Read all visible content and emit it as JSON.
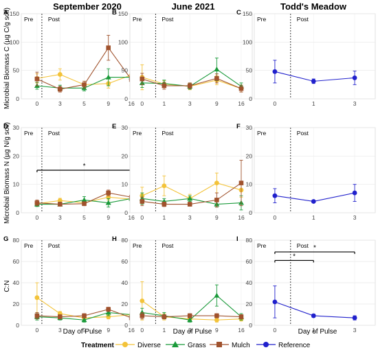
{
  "figure": {
    "x_axis_label": "Day of Pulse",
    "legend_title": "Treatment",
    "legend_items": [
      "Diverse",
      "Grass",
      "Mulch",
      "Reference"
    ],
    "colors": {
      "Diverse": "#F3C33A",
      "Grass": "#1A9A3A",
      "Mulch": "#A0522D",
      "Reference": "#2020CC"
    },
    "marker_shapes": {
      "Diverse": "circle",
      "Grass": "triangle",
      "Mulch": "square",
      "Reference": "circle"
    },
    "pre_label": "Pre",
    "post_label": "Post",
    "column_titles": [
      "September 2020",
      "June 2021",
      "Todd's Meadow"
    ]
  },
  "chart_data": [
    {
      "panel": "A",
      "type": "line",
      "title": "September 2020",
      "ylabel": "Microbial Biomass C (µg C/g soil)",
      "x": [
        0,
        3,
        5,
        9,
        16
      ],
      "xticks": [
        "0",
        "3",
        "5",
        "9",
        "16"
      ],
      "ylim": [
        0,
        150
      ],
      "yticks": [
        0,
        50,
        100,
        150
      ],
      "grid": true,
      "series": [
        {
          "name": "Diverse",
          "values": [
            36,
            43,
            25,
            27,
            42
          ],
          "err": [
            8,
            10,
            6,
            8,
            9
          ]
        },
        {
          "name": "Grass",
          "values": [
            23,
            19,
            19,
            38,
            38
          ],
          "err": [
            6,
            5,
            5,
            15,
            9
          ]
        },
        {
          "name": "Mulch",
          "values": [
            35,
            17,
            25,
            90,
            34
          ],
          "err": [
            12,
            5,
            6,
            22,
            10
          ]
        }
      ]
    },
    {
      "panel": "B",
      "type": "line",
      "title": "June 2021",
      "ylabel": "",
      "x": [
        0,
        1,
        3,
        9,
        16
      ],
      "xticks": [
        "0",
        "1",
        "3",
        "9",
        "16"
      ],
      "ylim": [
        0,
        150
      ],
      "yticks": [
        0,
        50,
        100,
        150
      ],
      "grid": true,
      "series": [
        {
          "name": "Diverse",
          "values": [
            38,
            26,
            22,
            33,
            18
          ],
          "err": [
            22,
            6,
            6,
            8,
            6
          ]
        },
        {
          "name": "Grass",
          "values": [
            28,
            27,
            22,
            52,
            22
          ],
          "err": [
            8,
            6,
            5,
            20,
            6
          ]
        },
        {
          "name": "Mulch",
          "values": [
            35,
            23,
            23,
            36,
            18
          ],
          "err": [
            10,
            6,
            5,
            8,
            6
          ]
        }
      ]
    },
    {
      "panel": "C",
      "type": "line",
      "title": "Todd's Meadow",
      "ylabel": "",
      "x": [
        0,
        1,
        3
      ],
      "xticks": [
        "0",
        "1",
        "3"
      ],
      "ylim": [
        0,
        150
      ],
      "yticks": [
        0,
        50,
        100,
        150
      ],
      "grid": true,
      "series": [
        {
          "name": "Reference",
          "values": [
            48,
            31,
            37
          ],
          "err": [
            20,
            4,
            12
          ]
        }
      ]
    },
    {
      "panel": "D",
      "type": "line",
      "title": "",
      "ylabel": "Microbial Biomass N (µg N/g soil)",
      "x": [
        0,
        3,
        5,
        9,
        16
      ],
      "xticks": [
        "0",
        "3",
        "5",
        "9",
        "16"
      ],
      "ylim": [
        0,
        30
      ],
      "yticks": [
        0,
        10,
        20,
        30
      ],
      "grid": true,
      "series": [
        {
          "name": "Diverse",
          "values": [
            3.2,
            4.3,
            3.5,
            5.5,
            4.8
          ],
          "err": [
            0.8,
            0.8,
            0.8,
            1.0,
            1.0
          ]
        },
        {
          "name": "Grass",
          "values": [
            3.0,
            3.0,
            4.5,
            3.5,
            5.0
          ],
          "err": [
            0.8,
            0.7,
            1.2,
            1.5,
            1.2
          ]
        },
        {
          "name": "Mulch",
          "values": [
            3.5,
            3.0,
            3.2,
            7.0,
            5.5
          ],
          "err": [
            1.0,
            0.7,
            0.7,
            1.0,
            1.2
          ]
        }
      ],
      "annotations": [
        {
          "type": "bracket",
          "x_from": 0,
          "x_to": 16,
          "y": 15,
          "label": "*"
        }
      ]
    },
    {
      "panel": "E",
      "type": "line",
      "title": "",
      "ylabel": "",
      "x": [
        0,
        1,
        3,
        9,
        16
      ],
      "xticks": [
        "0",
        "1",
        "3",
        "9",
        "16"
      ],
      "ylim": [
        0,
        30
      ],
      "yticks": [
        0,
        10,
        20,
        30
      ],
      "grid": true,
      "series": [
        {
          "name": "Diverse",
          "values": [
            6.0,
            9.5,
            5.0,
            10.5,
            8.0
          ],
          "err": [
            3.0,
            3.5,
            1.5,
            3.5,
            2.5
          ]
        },
        {
          "name": "Grass",
          "values": [
            5.0,
            4.0,
            5.0,
            3.0,
            3.5
          ],
          "err": [
            2.0,
            1.0,
            1.0,
            1.0,
            2.5
          ]
        },
        {
          "name": "Mulch",
          "values": [
            4.0,
            3.0,
            3.0,
            4.5,
            10.5
          ],
          "err": [
            1.5,
            0.8,
            0.7,
            2.5,
            8.0
          ]
        }
      ]
    },
    {
      "panel": "F",
      "type": "line",
      "title": "",
      "ylabel": "",
      "x": [
        0,
        1,
        3
      ],
      "xticks": [
        "0",
        "1",
        "3"
      ],
      "ylim": [
        0,
        30
      ],
      "yticks": [
        0,
        10,
        20,
        30
      ],
      "grid": true,
      "series": [
        {
          "name": "Reference",
          "values": [
            6.0,
            4.0,
            7.0
          ],
          "err": [
            2.5,
            0.4,
            3.0
          ]
        }
      ]
    },
    {
      "panel": "G",
      "type": "line",
      "title": "",
      "ylabel": "C:N",
      "x": [
        0,
        3,
        5,
        9,
        16
      ],
      "xticks": [
        "0",
        "3",
        "5",
        "9",
        "16"
      ],
      "ylim": [
        0,
        80
      ],
      "yticks": [
        0,
        20,
        40,
        60,
        80
      ],
      "grid": true,
      "series": [
        {
          "name": "Diverse",
          "values": [
            26,
            11,
            7,
            8,
            10
          ],
          "err": [
            14,
            2,
            2,
            2,
            2
          ]
        },
        {
          "name": "Grass",
          "values": [
            8,
            7,
            5,
            12,
            10
          ],
          "err": [
            3,
            2,
            2,
            3,
            2
          ]
        },
        {
          "name": "Mulch",
          "values": [
            9,
            8,
            9,
            15,
            7
          ],
          "err": [
            3,
            2,
            2,
            2,
            2
          ]
        }
      ]
    },
    {
      "panel": "H",
      "type": "line",
      "title": "",
      "ylabel": "",
      "x": [
        0,
        1,
        3,
        9,
        16
      ],
      "xticks": [
        "0",
        "1",
        "3",
        "9",
        "16"
      ],
      "ylim": [
        0,
        80
      ],
      "yticks": [
        0,
        20,
        40,
        60,
        80
      ],
      "grid": true,
      "series": [
        {
          "name": "Diverse",
          "values": [
            23,
            8,
            6,
            5,
            6
          ],
          "err": [
            18,
            3,
            2,
            2,
            2
          ]
        },
        {
          "name": "Grass",
          "values": [
            12,
            9,
            5,
            28,
            8
          ],
          "err": [
            4,
            3,
            2,
            10,
            3
          ]
        },
        {
          "name": "Mulch",
          "values": [
            9,
            8,
            9,
            9,
            8
          ],
          "err": [
            3,
            2,
            2,
            2,
            2
          ]
        }
      ]
    },
    {
      "panel": "I",
      "type": "line",
      "title": "",
      "ylabel": "",
      "x": [
        0,
        1,
        3
      ],
      "xticks": [
        "0",
        "1",
        "3"
      ],
      "ylim": [
        0,
        80
      ],
      "yticks": [
        0,
        20,
        40,
        60,
        80
      ],
      "grid": true,
      "series": [
        {
          "name": "Reference",
          "values": [
            22,
            9,
            7
          ],
          "err": [
            15,
            1.5,
            2
          ]
        }
      ],
      "annotations": [
        {
          "type": "bracket",
          "x_from": 0,
          "x_to": 3,
          "y": 69,
          "label": "*"
        },
        {
          "type": "bracket",
          "x_from": 0,
          "x_to": 1,
          "y": 61,
          "label": "*"
        }
      ]
    }
  ]
}
